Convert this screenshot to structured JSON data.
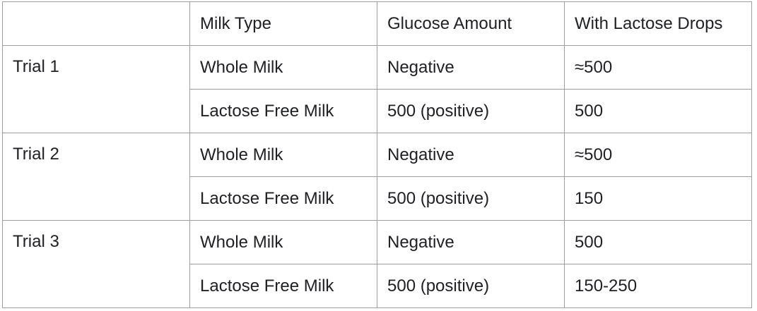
{
  "table": {
    "headers": [
      "",
      "Milk Type",
      "Glucose Amount",
      "With Lactose Drops"
    ],
    "trials": [
      {
        "label": "Trial 1",
        "rows": [
          {
            "milk_type": "Whole Milk",
            "glucose_amount": "Negative",
            "with_lactose_drops": "≈500"
          },
          {
            "milk_type": "Lactose Free Milk",
            "glucose_amount": "500 (positive)",
            "with_lactose_drops": "500"
          }
        ]
      },
      {
        "label": "Trial 2",
        "rows": [
          {
            "milk_type": "Whole Milk",
            "glucose_amount": "Negative",
            "with_lactose_drops": "≈500"
          },
          {
            "milk_type": "Lactose Free Milk",
            "glucose_amount": "500 (positive)",
            "with_lactose_drops": "150"
          }
        ]
      },
      {
        "label": "Trial 3",
        "rows": [
          {
            "milk_type": "Whole Milk",
            "glucose_amount": "Negative",
            "with_lactose_drops": "500"
          },
          {
            "milk_type": "Lactose Free Milk",
            "glucose_amount": "500 (positive)",
            "with_lactose_drops": "150-250"
          }
        ]
      }
    ]
  }
}
